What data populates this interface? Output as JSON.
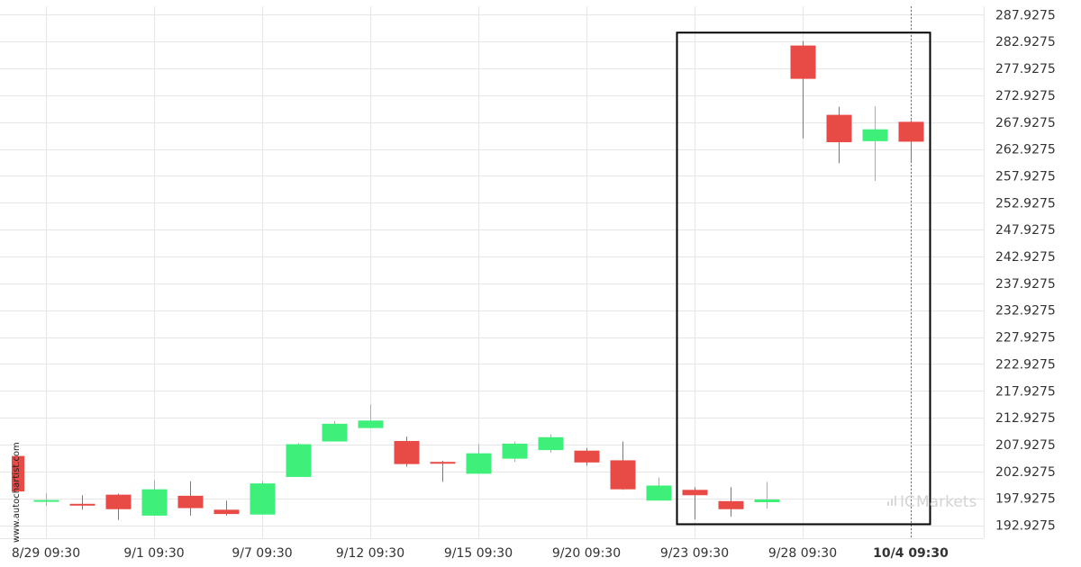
{
  "chart_data": {
    "type": "candlestick",
    "colors": {
      "up": "#3ef07a",
      "down": "#e84a45",
      "grid": "#e6e6e6",
      "box": "#000000",
      "current_line": "#c44d4d"
    },
    "ylim": [
      190.5,
      289.5
    ],
    "y_ticks": [
      "287.9275",
      "282.9275",
      "277.9275",
      "272.9275",
      "267.9275",
      "262.9275",
      "257.9275",
      "252.9275",
      "247.9275",
      "242.9275",
      "237.9275",
      "232.9275",
      "227.9275",
      "222.9275",
      "217.9275",
      "212.9275",
      "207.9275",
      "202.9275",
      "197.9275",
      "192.9275"
    ],
    "x_ticks": [
      "8/29 09:30",
      "9/1 09:30",
      "9/7 09:30",
      "9/12 09:30",
      "9/15 09:30",
      "9/20 09:30",
      "9/23 09:30",
      "9/28 09:30",
      "10/4 09:30"
    ],
    "x_tick_highlight": "10/4 09:30",
    "candles": [
      {
        "o": 197.4,
        "h": 198.9,
        "l": 196.5,
        "c": 197.6
      },
      {
        "o": 196.9,
        "h": 198.5,
        "l": 195.8,
        "c": 196.7
      },
      {
        "o": 198.6,
        "h": 198.8,
        "l": 193.9,
        "c": 195.9
      },
      {
        "o": 194.7,
        "h": 201.3,
        "l": 194.7,
        "c": 199.6
      },
      {
        "o": 198.4,
        "h": 201.1,
        "l": 194.7,
        "c": 196.1
      },
      {
        "o": 195.8,
        "h": 197.5,
        "l": 194.7,
        "c": 195.0
      },
      {
        "o": 194.9,
        "h": 201.1,
        "l": 194.9,
        "c": 200.7
      },
      {
        "o": 201.9,
        "h": 208.2,
        "l": 201.9,
        "c": 208.0
      },
      {
        "o": 208.5,
        "h": 212.3,
        "l": 208.5,
        "c": 211.8
      },
      {
        "o": 211.0,
        "h": 215.4,
        "l": 211.0,
        "c": 212.4
      },
      {
        "o": 208.6,
        "h": 209.4,
        "l": 203.8,
        "c": 204.3
      },
      {
        "o": 204.7,
        "h": 204.9,
        "l": 201.0,
        "c": 204.5
      },
      {
        "o": 202.5,
        "h": 208.0,
        "l": 202.5,
        "c": 206.3
      },
      {
        "o": 205.3,
        "h": 208.5,
        "l": 204.7,
        "c": 208.1
      },
      {
        "o": 206.9,
        "h": 209.8,
        "l": 206.4,
        "c": 209.3
      },
      {
        "o": 206.8,
        "h": 207.3,
        "l": 204.0,
        "c": 204.6
      },
      {
        "o": 205.0,
        "h": 208.5,
        "l": 199.5,
        "c": 199.6
      },
      {
        "o": 197.5,
        "h": 201.8,
        "l": 197.5,
        "c": 200.3
      },
      {
        "o": 199.5,
        "h": 200.0,
        "l": 194.0,
        "c": 198.5
      },
      {
        "o": 197.4,
        "h": 200.0,
        "l": 194.5,
        "c": 195.9
      },
      {
        "o": 197.2,
        "h": 201.0,
        "l": 196.0,
        "c": 197.7
      },
      {
        "o": 282.2,
        "h": 283.0,
        "l": 264.9,
        "c": 276.0
      },
      {
        "o": 269.3,
        "h": 270.8,
        "l": 260.3,
        "c": 264.2
      },
      {
        "o": 264.4,
        "h": 270.9,
        "l": 257.0,
        "c": 266.6
      },
      {
        "o": 268.0,
        "h": 268.3,
        "l": 260.5,
        "c": 264.3
      }
    ],
    "left_marker": {
      "top": 205.8,
      "bottom": 199.2
    },
    "pattern_box": {
      "from_index": 18,
      "to_index": 25,
      "top": 284.6,
      "bottom": 193.1
    }
  },
  "watermark": "www.autochartist.com",
  "brand": {
    "name": "Markets",
    "prefix": "IC"
  }
}
